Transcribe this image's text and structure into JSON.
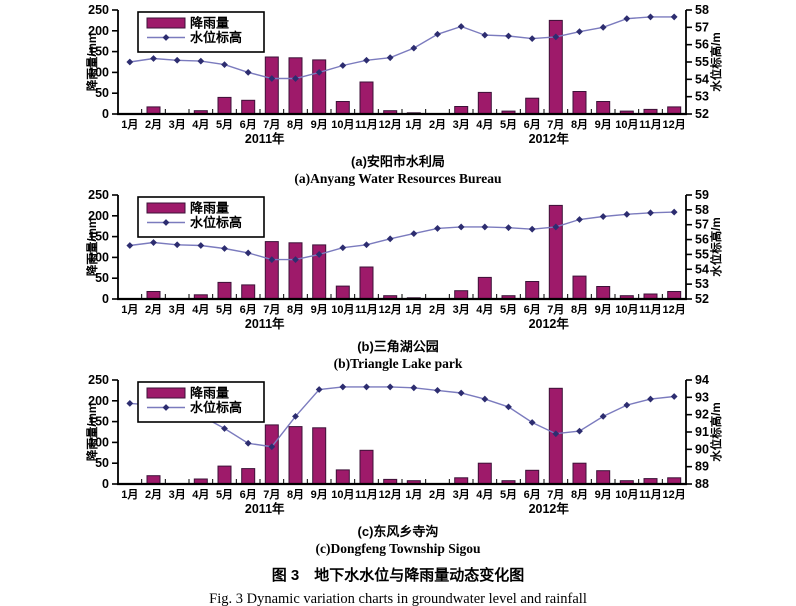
{
  "colors": {
    "bar_fill": "#9E1A6A",
    "bar_stroke": "#3C1238",
    "line": "#7B7BBE",
    "marker": "#2D2D70",
    "axis": "#000000",
    "text": "#000000",
    "legend_border": "#000000",
    "legend_bg": "#ffffff"
  },
  "legend": {
    "rain_label": "降雨量",
    "level_label": "水位标高"
  },
  "axes": {
    "left_label": "降雨量/mm",
    "right_label": "水位标高/m",
    "left_ticks": [
      0,
      50,
      100,
      150,
      200,
      250
    ],
    "x_months": [
      "1月",
      "2月",
      "3月",
      "4月",
      "5月",
      "6月",
      "7月",
      "8月",
      "9月",
      "10月",
      "11月",
      "12月",
      "1月",
      "2月",
      "3月",
      "4月",
      "5月",
      "6月",
      "7月",
      "8月",
      "9月",
      "10月",
      "11月",
      "12月"
    ],
    "x_year_labels": [
      "2011年",
      "2012年"
    ]
  },
  "figure_caption": {
    "zh": "图 3　地下水水位与降雨量动态变化图",
    "en": "Fig. 3 Dynamic variation charts in groundwater level and rainfall"
  },
  "chart_data": [
    {
      "type": "bar",
      "title_zh": "(a)安阳市水利局",
      "title_en": "(a)Anyang Water Resources Bureau",
      "categories": [
        "1月",
        "2月",
        "3月",
        "4月",
        "5月",
        "6月",
        "7月",
        "8月",
        "9月",
        "10月",
        "11月",
        "12月",
        "1月",
        "2月",
        "3月",
        "4月",
        "5月",
        "6月",
        "7月",
        "8月",
        "9月",
        "10月",
        "11月",
        "12月"
      ],
      "x_group_labels": [
        "2011年",
        "2012年"
      ],
      "xlabel": "",
      "ylabel_left": "降雨量/mm",
      "ylabel_right": "水位标高/m",
      "ylim_left": [
        0,
        250
      ],
      "ylim_right": [
        52,
        58
      ],
      "grid": false,
      "legend_position": "top-left",
      "series": [
        {
          "name": "降雨量",
          "type": "bar",
          "axis": "left",
          "values": [
            0,
            17,
            0,
            8,
            40,
            33,
            137,
            135,
            130,
            30,
            77,
            8,
            3,
            1,
            18,
            52,
            7,
            38,
            225,
            54,
            30,
            7,
            11,
            17
          ]
        },
        {
          "name": "水位标高",
          "type": "line",
          "axis": "right",
          "values": [
            55.0,
            55.2,
            55.1,
            55.05,
            54.85,
            54.4,
            54.05,
            54.05,
            54.4,
            54.8,
            55.1,
            55.25,
            55.8,
            56.6,
            57.05,
            56.55,
            56.5,
            56.35,
            56.45,
            56.75,
            57.0,
            57.5,
            57.6,
            57.6
          ]
        }
      ]
    },
    {
      "type": "bar",
      "title_zh": "(b)三角湖公园",
      "title_en": "(b)Triangle Lake park",
      "categories": [
        "1月",
        "2月",
        "3月",
        "4月",
        "5月",
        "6月",
        "7月",
        "8月",
        "9月",
        "10月",
        "11月",
        "12月",
        "1月",
        "2月",
        "3月",
        "4月",
        "5月",
        "6月",
        "7月",
        "8月",
        "9月",
        "10月",
        "11月",
        "12月"
      ],
      "x_group_labels": [
        "2011年",
        "2012年"
      ],
      "xlabel": "",
      "ylabel_left": "降雨量/mm",
      "ylabel_right": "水位标高/m",
      "ylim_left": [
        0,
        250
      ],
      "ylim_right": [
        52,
        59
      ],
      "grid": false,
      "legend_position": "top-left",
      "series": [
        {
          "name": "降雨量",
          "type": "bar",
          "axis": "left",
          "values": [
            0,
            18,
            0,
            10,
            40,
            34,
            138,
            135,
            130,
            31,
            77,
            8,
            3,
            1,
            20,
            52,
            8,
            42,
            225,
            55,
            30,
            8,
            12,
            18
          ]
        },
        {
          "name": "水位标高",
          "type": "line",
          "axis": "right",
          "values": [
            55.6,
            55.8,
            55.65,
            55.6,
            55.4,
            55.1,
            54.65,
            54.65,
            55.0,
            55.45,
            55.65,
            56.05,
            56.4,
            56.75,
            56.85,
            56.85,
            56.8,
            56.7,
            56.85,
            57.35,
            57.55,
            57.7,
            57.8,
            57.85
          ]
        }
      ]
    },
    {
      "type": "bar",
      "title_zh": "(c)东风乡寺沟",
      "title_en": "(c)Dongfeng Township Sigou",
      "categories": [
        "1月",
        "2月",
        "3月",
        "4月",
        "5月",
        "6月",
        "7月",
        "8月",
        "9月",
        "10月",
        "11月",
        "12月",
        "1月",
        "2月",
        "3月",
        "4月",
        "5月",
        "6月",
        "7月",
        "8月",
        "9月",
        "10月",
        "11月",
        "12月"
      ],
      "x_group_labels": [
        "2011年",
        "2012年"
      ],
      "xlabel": "",
      "ylabel_left": "降雨量/mm",
      "ylabel_right": "水位标高/m",
      "ylim_left": [
        0,
        250
      ],
      "ylim_right": [
        88,
        94
      ],
      "grid": false,
      "legend_position": "top-left",
      "series": [
        {
          "name": "降雨量",
          "type": "bar",
          "axis": "left",
          "values": [
            0,
            20,
            0,
            12,
            43,
            37,
            142,
            138,
            135,
            34,
            81,
            11,
            8,
            1,
            15,
            50,
            8,
            33,
            230,
            50,
            32,
            8,
            13,
            15
          ]
        },
        {
          "name": "水位标高",
          "type": "line",
          "axis": "right",
          "values": [
            92.65,
            92.55,
            92.35,
            91.95,
            91.2,
            90.35,
            90.15,
            91.9,
            93.45,
            93.6,
            93.6,
            93.6,
            93.55,
            93.4,
            93.25,
            92.9,
            92.45,
            91.55,
            90.9,
            91.05,
            91.9,
            92.55,
            92.9,
            93.05
          ]
        }
      ]
    }
  ]
}
